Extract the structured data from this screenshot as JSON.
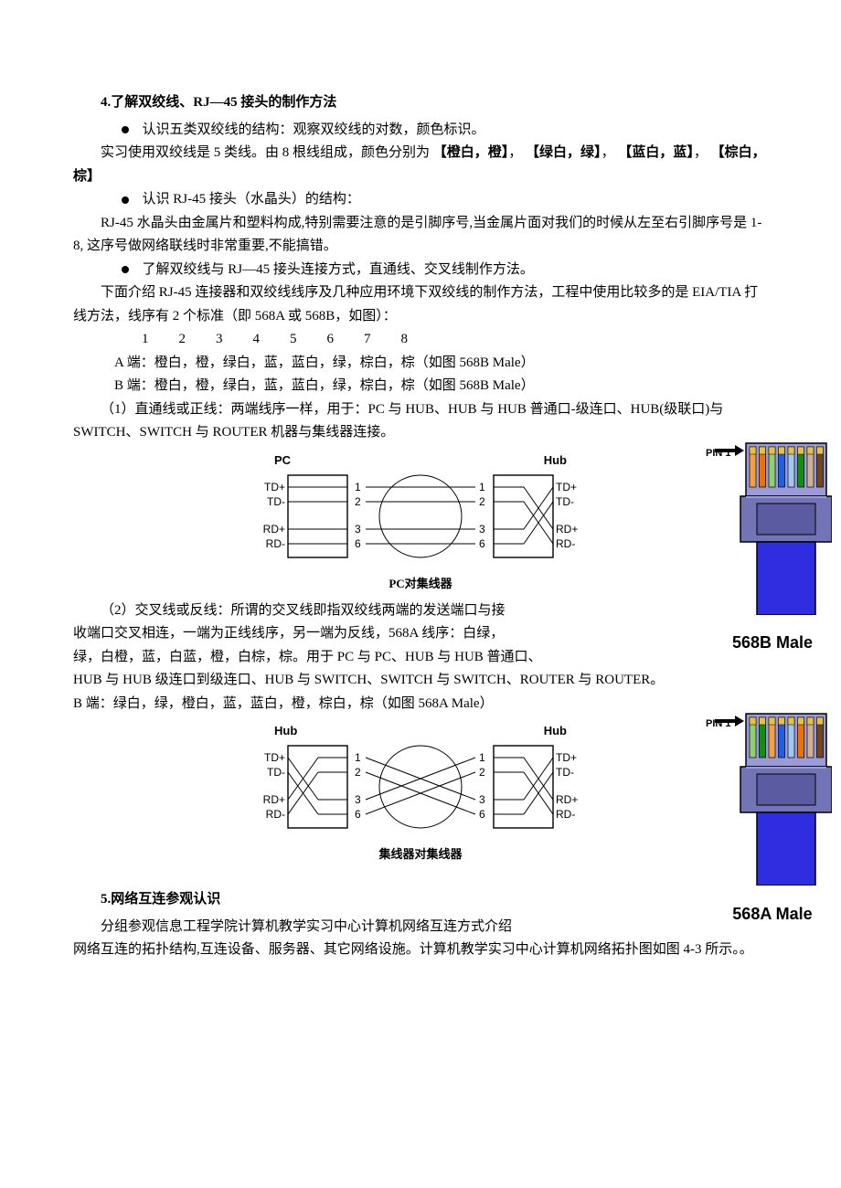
{
  "section4": {
    "heading": "4.了解双绞线、RJ—45 接头的制作方法",
    "bullets": [
      "认识五类双绞线的结构：观察双绞线的对数，颜色标识。",
      "认识 RJ-45 接头（水晶头）的结构：",
      "了解双绞线与 RJ—45 接头连接方式，直通线、交叉线制作方法。"
    ],
    "p1_prefix": "实习使用双绞线是 5 类线。由 8 根线组成，颜色分别为",
    "p1_groups": [
      "【橙白，橙】",
      "，",
      "【绿白，绿】",
      "，",
      "【蓝白，蓝】",
      "，  ",
      "【棕白，棕】"
    ],
    "p2": "RJ-45 水晶头由金属片和塑料构成,特别需要注意的是引脚序号,当金属片面对我们的时候从左至右引脚序号是 1-8,  这序号做网络联线时非常重要,不能搞错。",
    "p3": "下面介绍 RJ-45 连接器和双绞线线序及几种应用环境下双绞线的制作方法，工程中使用比较多的是 EIA/TIA 打线方法，线序有 2 个标准（即 568A 或 568B，如图）：",
    "pins": [
      "1",
      "2",
      "3",
      "4",
      "5",
      "6",
      "7",
      "8"
    ],
    "endA": "A 端：橙白，橙，绿白，蓝，蓝白，绿，棕白，棕（如图 568B Male）",
    "endB": "B 端：橙白，橙，绿白，蓝，蓝白，绿，棕白，棕（如图 568B Male）",
    "straight_desc": "（1）直通线或正线：两端线序一样，用于：PC 与 HUB、HUB 与 HUB 普通口-级连口、HUB(级联口)与 SWITCH、SWITCH 与 ROUTER 机器与集线器连接。",
    "cross_desc_1": "（2）交叉线或反线：所谓的交叉线即指双绞线两端的发送端口与接",
    "cross_desc_2": "收端口交叉相连，一端为正线线序，另一端为反线，568A 线序：白绿，",
    "cross_desc_3": "绿，白橙，蓝，白蓝，橙，白棕，棕。用于 PC 与 PC、HUB 与 HUB 普通口、",
    "cross_desc_4": "HUB 与 HUB 级连口到级连口、HUB 与 SWITCH、SWITCH 与 SWITCH、ROUTER 与 ROUTER。",
    "endB2": "B 端：绿白，绿，橙白，蓝，蓝白，橙，棕白，棕（如图 568A Male）"
  },
  "diagram1": {
    "left_title": "PC",
    "right_title": "Hub",
    "caption": "PC对集线器",
    "left_pins": [
      "TD+",
      "TD-",
      "RD+",
      "RD-"
    ],
    "right_pins": [
      "TD+",
      "TD-",
      "RD+",
      "RD-"
    ],
    "nums_left": [
      "1",
      "2",
      "3",
      "6"
    ],
    "nums_right": [
      "1",
      "2",
      "3",
      "6"
    ],
    "box_stroke": "#000000",
    "line_stroke": "#000000",
    "bg": "#ffffff"
  },
  "diagram2": {
    "left_title": "Hub",
    "right_title": "Hub",
    "caption": "集线器对集线器",
    "left_pins": [
      "TD+",
      "TD-",
      "RD+",
      "RD-"
    ],
    "right_pins": [
      "TD+",
      "TD-",
      "RD+",
      "RD-"
    ],
    "nums_left": [
      "1",
      "2",
      "3",
      "6"
    ],
    "nums_right": [
      "1",
      "2",
      "3",
      "6"
    ],
    "box_stroke": "#000000",
    "line_stroke": "#000000",
    "bg": "#ffffff"
  },
  "rj45": {
    "pin1": "PIN 1",
    "label_b": "568B Male",
    "label_a": "568A Male",
    "body_color": "#9A9BD8",
    "plug_color": "#7374B8",
    "cable_color": "#2E2EE0",
    "outline": "#000000",
    "wires_b": [
      "#f5a040",
      "#f07000",
      "#90d070",
      "#2060e0",
      "#a0c8f0",
      "#109010",
      "#d0b090",
      "#704820"
    ],
    "wires_a": [
      "#90d070",
      "#109010",
      "#f5a040",
      "#2060e0",
      "#a0c8f0",
      "#f07000",
      "#d0b090",
      "#704820"
    ]
  },
  "section5": {
    "heading": "5.网络互连参观认识",
    "p1": "分组参观信息工程学院计算机教学实习中心计算机网络互连方式介绍",
    "p2": "网络互连的拓扑结构,互连设备、服务器、其它网络设施。计算机教学实习中心计算机网络拓扑图如图 4-3 所示。。"
  }
}
